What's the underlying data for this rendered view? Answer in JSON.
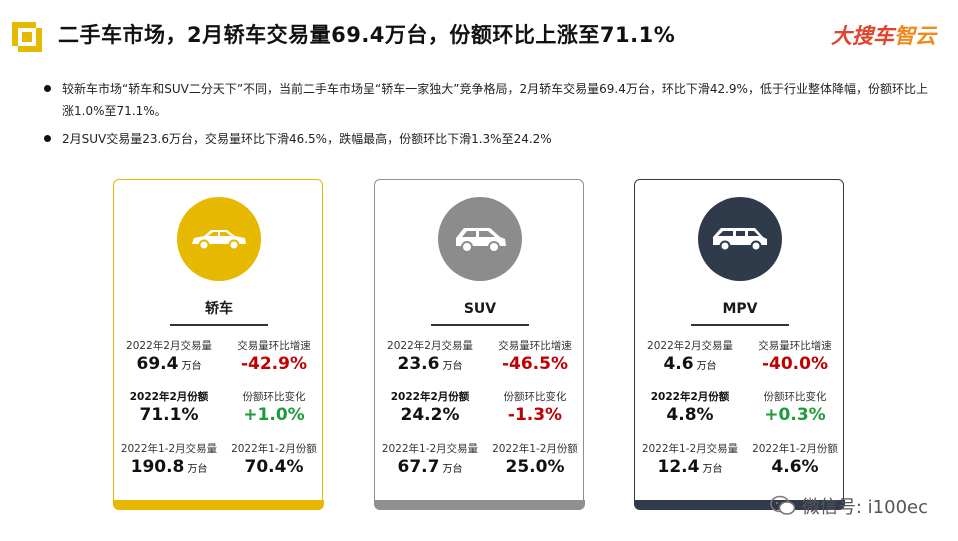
{
  "header": {
    "title": "二手车市场，2月轿车交易量69.4万台，份额环比上涨至71.1%",
    "brand_part1": "大搜车",
    "brand_part2": "智云"
  },
  "bullets": [
    "较新车市场“轿车和SUV二分天下”不同，当前二手车市场呈“轿车一家独大”竞争格局，2月轿车交易量69.4万台，环比下滑42.9%，低于行业整体降幅，份额环比上涨1.0%至71.1%。",
    "2月SUV交易量23.6万台，交易量环比下滑46.5%，跌幅最高，份额环比下滑1.3%至24.2%"
  ],
  "cards": [
    {
      "label": "轿车",
      "vol_caption": "2022年2月交易量",
      "vol_value": "69.4",
      "vol_unit": "万台",
      "mom_caption": "交易量环比增速",
      "mom_value": "-42.9%",
      "share_caption": "2022年2月份额",
      "share_value": "71.1%",
      "share_chg_caption": "份额环比变化",
      "share_chg_value": "+1.0%",
      "ytd_vol_caption": "2022年1-2月交易量",
      "ytd_vol_value": "190.8",
      "ytd_vol_unit": "万台",
      "ytd_share_caption": "2022年1-2月份额",
      "ytd_share_value": "70.4%"
    },
    {
      "label": "SUV",
      "vol_caption": "2022年2月交易量",
      "vol_value": "23.6",
      "vol_unit": "万台",
      "mom_caption": "交易量环比增速",
      "mom_value": "-46.5%",
      "share_caption": "2022年2月份额",
      "share_value": "24.2%",
      "share_chg_caption": "份额环比变化",
      "share_chg_value": "-1.3%",
      "ytd_vol_caption": "2022年1-2月交易量",
      "ytd_vol_value": "67.7",
      "ytd_vol_unit": "万台",
      "ytd_share_caption": "2022年1-2月份额",
      "ytd_share_value": "25.0%"
    },
    {
      "label": "MPV",
      "vol_caption": "2022年2月交易量",
      "vol_value": "4.6",
      "vol_unit": "万台",
      "mom_caption": "交易量环比增速",
      "mom_value": "-40.0%",
      "share_caption": "2022年2月份额",
      "share_value": "4.8%",
      "share_chg_caption": "份额环比变化",
      "share_chg_value": "+0.3%",
      "ytd_vol_caption": "2022年1-2月交易量",
      "ytd_vol_value": "12.4",
      "ytd_vol_unit": "万台",
      "ytd_share_caption": "2022年1-2月份额",
      "ytd_share_value": "4.6%"
    }
  ],
  "watermark": {
    "text": "微信号: i100ec"
  },
  "colors": {
    "sedan": "#e6b800",
    "suv": "#8c8c8c",
    "mpv": "#2f3a4b",
    "negative": "#c00000",
    "positive": "#1f9a3a",
    "brand_red": "#e0452b",
    "brand_orange": "#f08a1c"
  },
  "icons": {
    "logo": "bracket-square-logo",
    "sedan": "sedan-car-icon",
    "suv": "suv-car-icon",
    "mpv": "mpv-car-icon",
    "watermark": "wechat-icon"
  }
}
